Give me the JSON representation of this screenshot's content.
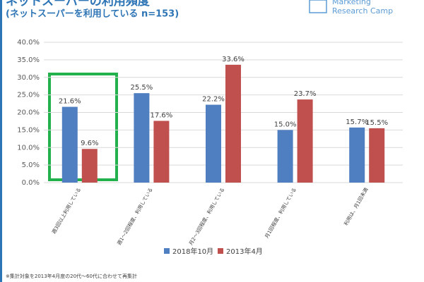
{
  "chart_data": {
    "type": "bar",
    "title": "ネットスーパーの利用頻度",
    "subtitle": "(ネットスーパーを利用している n=153)",
    "logo": [
      "Marketing",
      "Research Camp"
    ],
    "categories": [
      "週3回以上利用している",
      "週1〜2回程度、利用している",
      "月2〜3回程度、利用している",
      "月1回程度、利用している",
      "利用は、月1回未満"
    ],
    "series": [
      {
        "name": "2018年10月",
        "color": "#4f7fc0",
        "values": [
          21.6,
          25.5,
          22.2,
          15.0,
          15.7
        ],
        "value_labels": [
          "21.6%",
          "25.5%",
          "22.2%",
          "15.0%",
          "15.7%"
        ]
      },
      {
        "name": "2013年4月",
        "color": "#c0504d",
        "values": [
          9.6,
          17.6,
          33.6,
          23.7,
          15.5
        ],
        "value_labels": [
          "9.6%",
          "17.6%",
          "33.6%",
          "23.7%",
          "15.5%"
        ]
      }
    ],
    "ylim": [
      0,
      40
    ],
    "yticks": [
      {
        "value": 0,
        "label": "0.0%"
      },
      {
        "value": 5,
        "label": "5.0%"
      },
      {
        "value": 10,
        "label": "10.0%"
      },
      {
        "value": 15,
        "label": "15.0%"
      },
      {
        "value": 20,
        "label": "20.0%"
      },
      {
        "value": 25,
        "label": "25.0%"
      },
      {
        "value": 30,
        "label": "30.0%"
      },
      {
        "value": 35,
        "label": "35.0%"
      },
      {
        "value": 40,
        "label": "40.0%"
      }
    ],
    "grid": true,
    "footnote": "※集計対象を2013年4月度の20代〜60代に合わせて再集計"
  }
}
